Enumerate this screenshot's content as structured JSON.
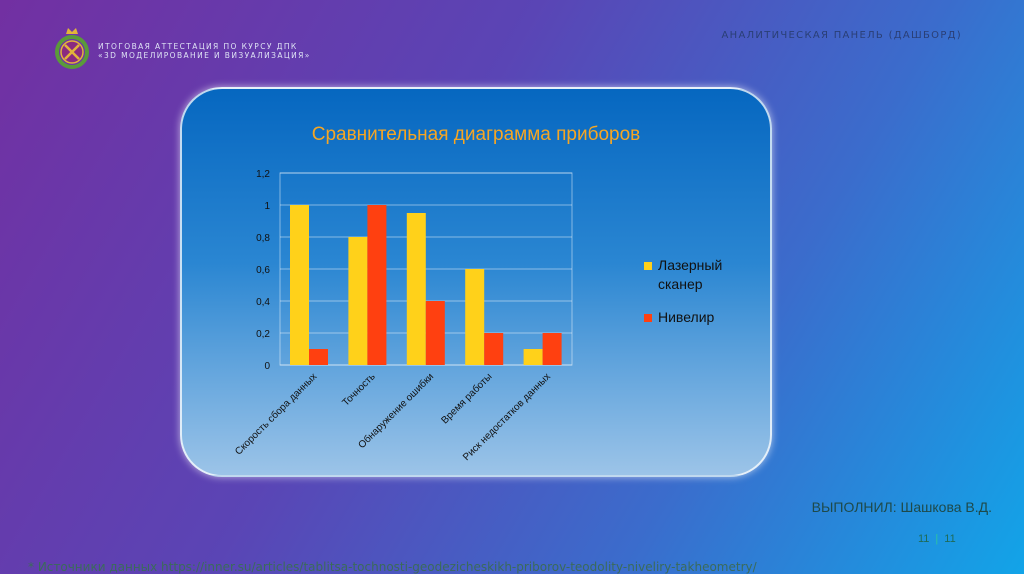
{
  "header": {
    "line1": "ИТОГОВАЯ АТТЕСТАЦИЯ ПО КУРСУ ДПК",
    "line2": "«3D МОДЕЛИРОВАНИЕ И ВИЗУАЛИЗАЦИЯ»",
    "right_title": "АНАЛИТИЧЕСКАЯ ПАНЕЛЬ (ДАШБОРД)"
  },
  "chart_data": {
    "type": "bar",
    "title": "Сравнительная диаграмма приборов",
    "categories": [
      "Скорость сбора данных",
      "Точность",
      "Обнаружение ошибки",
      "Время работы",
      "Риск недостатков данных"
    ],
    "series": [
      {
        "name": "Лазерный сканер",
        "values": [
          1,
          0.8,
          0.95,
          0.6,
          0.1
        ],
        "color": "#ffd11a"
      },
      {
        "name": "Нивелир",
        "values": [
          0.1,
          1,
          0.4,
          0.2,
          0.2
        ],
        "color": "#ff4010"
      }
    ],
    "ylim": [
      0,
      1.2
    ],
    "yticks": [
      "0",
      "0,2",
      "0,4",
      "0,6",
      "0,8",
      "1",
      "1,2"
    ],
    "legend_position": "right",
    "grid": true
  },
  "footer": {
    "author": "ВЫПОЛНИЛ: Шашкова В.Д.",
    "page": "11",
    "page_total": "11",
    "source": "* Источники данных https://inner.su/articles/tablitsa-tochnosti-geodezicheskikh-priborov-teodolity-niveliry-takheometry/"
  }
}
